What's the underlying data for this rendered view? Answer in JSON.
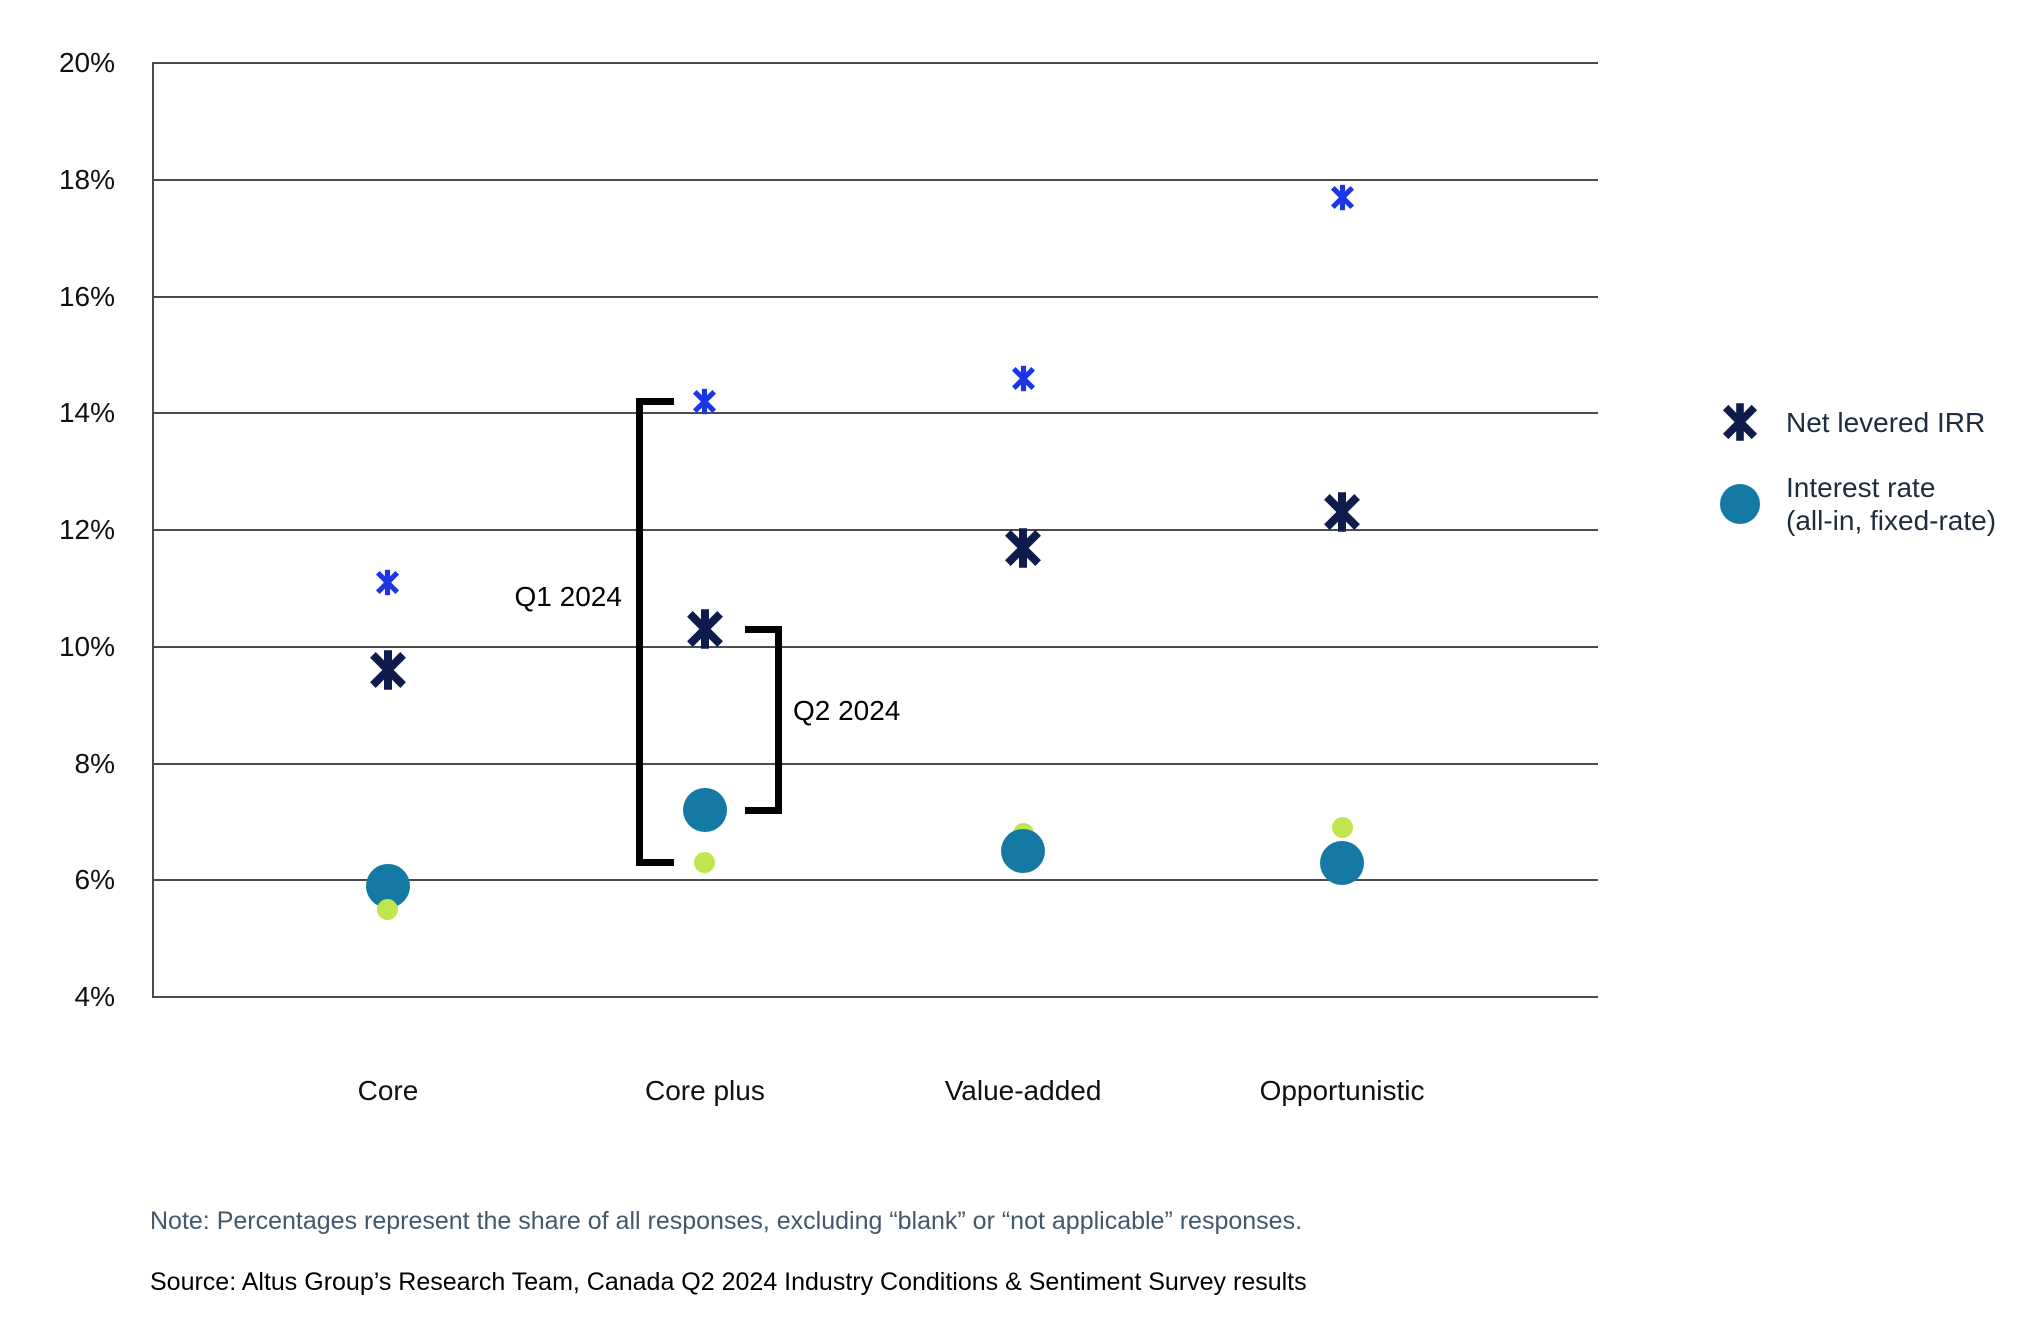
{
  "note": "Note: Percentages represent the share of all responses, excluding “blank” or “not applicable” responses.",
  "source": "Source: Altus Group’s Research Team, Canada Q2 2024 Industry Conditions & Sentiment Survey results",
  "legend": {
    "items": [
      {
        "label": "Net levered IRR",
        "marker": "asterisk-x-icon",
        "color": "#0d1b4d"
      },
      {
        "label_line1": "Interest rate",
        "label_line2": "(all-in, fixed-rate)",
        "marker": "circle-icon",
        "color": "#147aa3"
      }
    ]
  },
  "chart_data": {
    "type": "scatter",
    "title": "",
    "categories": [
      "Core",
      "Core plus",
      "Value-added",
      "Opportunistic"
    ],
    "ylim": [
      4,
      20
    ],
    "ytick_step": 2,
    "ytick_labels": [
      "20%",
      "18%",
      "16%",
      "14%",
      "12%",
      "10%",
      "8%",
      "6%",
      "4%"
    ],
    "grid": "horizontal",
    "legend_position": "right",
    "series": [
      {
        "name": "Net levered IRR (Q1 2024)",
        "metric": "Net levered IRR",
        "quarter": "Q1 2024",
        "marker": "asterisk-x",
        "color": "#1c37e2",
        "marker_size": 27,
        "values": [
          11.1,
          14.2,
          14.6,
          17.7
        ]
      },
      {
        "name": "Net levered IRR (Q2 2024)",
        "metric": "Net levered IRR",
        "quarter": "Q2 2024",
        "marker": "asterisk-x",
        "color": "#0d1b4d",
        "marker_size": 42,
        "values": [
          9.6,
          10.3,
          11.7,
          12.3
        ]
      },
      {
        "name": "Interest rate, all-in fixed-rate (Q1 2024)",
        "metric": "Interest rate (all-in, fixed-rate)",
        "quarter": "Q1 2024",
        "marker": "circle",
        "color": "#c1e54d",
        "marker_size": 21,
        "values": [
          5.5,
          6.3,
          6.8,
          6.9
        ]
      },
      {
        "name": "Interest rate, all-in fixed-rate (Q2 2024)",
        "metric": "Interest rate (all-in, fixed-rate)",
        "quarter": "Q2 2024",
        "marker": "circle",
        "color": "#147aa3",
        "marker_size": 44,
        "values": [
          5.9,
          7.2,
          6.5,
          6.3
        ]
      }
    ],
    "annotations": [
      {
        "label": "Q1 2024",
        "category": "Core plus",
        "from_value": 14.2,
        "to_value": 6.3,
        "side": "left"
      },
      {
        "label": "Q2 2024",
        "category": "Core plus",
        "from_value": 10.3,
        "to_value": 7.2,
        "side": "right"
      }
    ]
  }
}
